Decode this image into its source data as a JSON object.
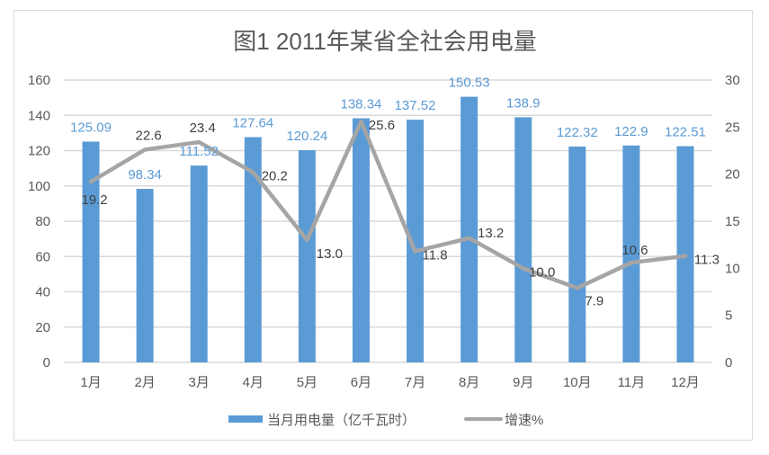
{
  "chart_data": {
    "type": "bar+line",
    "title": "图1  2011年某省全社会用电量",
    "categories": [
      "1月",
      "2月",
      "3月",
      "4月",
      "5月",
      "6月",
      "7月",
      "8月",
      "9月",
      "10月",
      "11月",
      "12月"
    ],
    "series": [
      {
        "name": "当月用电量（亿千瓦时）",
        "type": "bar",
        "axis": "left",
        "color": "#5B9BD5",
        "values": [
          125.09,
          98.34,
          111.52,
          127.64,
          120.24,
          138.34,
          137.52,
          150.53,
          138.9,
          122.32,
          122.9,
          122.51
        ],
        "labels": [
          "125.09",
          "98.34",
          "111.52",
          "127.64",
          "120.24",
          "138.34",
          "137.52",
          "150.53",
          "138.9",
          "122.32",
          "122.9",
          "122.51"
        ]
      },
      {
        "name": "增速%",
        "type": "line",
        "axis": "right",
        "color": "#A5A5A5",
        "values": [
          19.2,
          22.6,
          23.4,
          20.2,
          13.0,
          25.6,
          11.8,
          13.2,
          10.0,
          7.9,
          10.6,
          11.3
        ],
        "labels": [
          "19.2",
          "22.6",
          "23.4",
          "20.2",
          "13.0",
          "25.6",
          "11.8",
          "13.2",
          "10.0",
          "7.9",
          "10.6",
          "11.3"
        ]
      }
    ],
    "left_axis": {
      "ylim": [
        0,
        160
      ],
      "ticks": [
        "0",
        "20",
        "40",
        "60",
        "80",
        "100",
        "120",
        "140",
        "160"
      ]
    },
    "right_axis": {
      "ylim": [
        0,
        30
      ],
      "ticks": [
        "0",
        "5",
        "10",
        "15",
        "20",
        "25",
        "30"
      ]
    },
    "xlabel": "",
    "ylabel": "",
    "grid": true,
    "legend_position": "bottom"
  }
}
